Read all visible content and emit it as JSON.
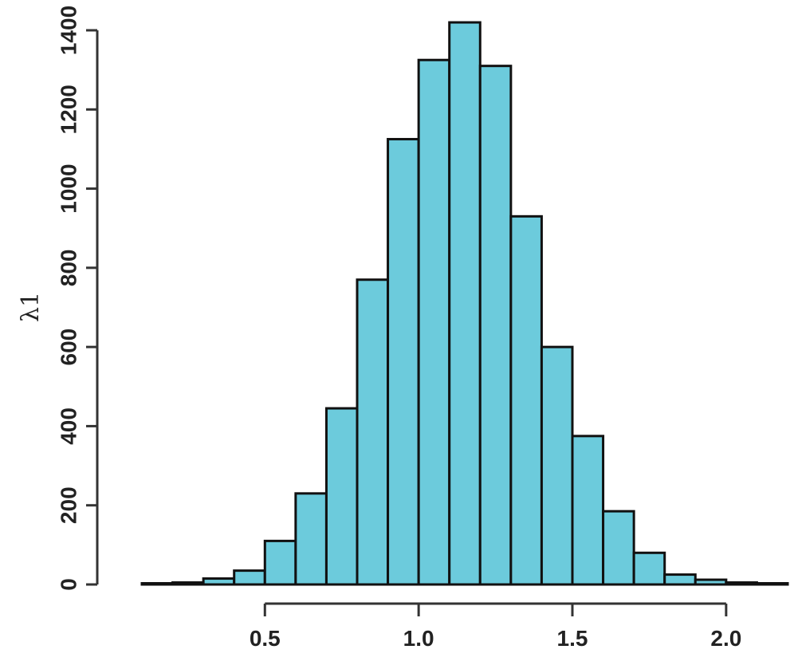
{
  "chart_data": {
    "type": "bar",
    "title": "",
    "xlabel": "",
    "ylabel": "λ1",
    "bar_color": "#6ccbdc",
    "edge_color": "#111111",
    "bin_width": 0.1,
    "x": [
      0.1,
      0.2,
      0.3,
      0.4,
      0.5,
      0.6,
      0.7,
      0.8,
      0.9,
      1.0,
      1.1,
      1.2,
      1.3,
      1.4,
      1.5,
      1.6,
      1.7,
      1.8,
      1.9,
      2.0,
      2.1
    ],
    "values": [
      3,
      5,
      15,
      35,
      110,
      230,
      445,
      770,
      1125,
      1325,
      1420,
      1310,
      930,
      600,
      375,
      185,
      80,
      25,
      12,
      5,
      3
    ],
    "xlim": [
      0.1,
      2.2
    ],
    "ylim": [
      0,
      1400
    ],
    "x_ticks": [
      "0.5",
      "1.0",
      "1.5",
      "2.0"
    ],
    "x_tick_values": [
      0.5,
      1.0,
      1.5,
      2.0
    ],
    "y_ticks": [
      "0",
      "200",
      "400",
      "600",
      "800",
      "1000",
      "1200",
      "1400"
    ],
    "y_tick_values": [
      0,
      200,
      400,
      600,
      800,
      1000,
      1200,
      1400
    ],
    "grid": false,
    "legend": "none"
  }
}
